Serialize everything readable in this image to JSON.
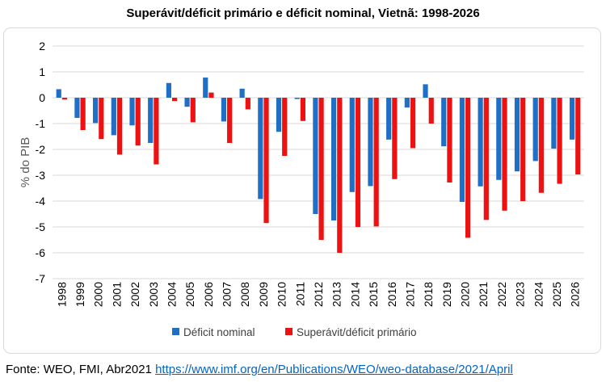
{
  "chart_data": {
    "type": "bar",
    "title": "Superávit/déficit primário e déficit nominal, Vietnã: 1998-2026",
    "xlabel": "",
    "ylabel": "% do PIB",
    "ylim": [
      -7,
      2
    ],
    "yticks": [
      2,
      1,
      0,
      -1,
      -2,
      -3,
      -4,
      -5,
      -6,
      -7
    ],
    "grid": true,
    "legend_position": "bottom",
    "categories": [
      "1998",
      "1999",
      "2000",
      "2001",
      "2002",
      "2003",
      "2004",
      "2005",
      "2006",
      "2007",
      "2008",
      "2009",
      "2010",
      "2011",
      "2012",
      "2013",
      "2014",
      "2015",
      "2016",
      "2017",
      "2018",
      "2019",
      "2020",
      "2021",
      "2022",
      "2023",
      "2024",
      "2025",
      "2026"
    ],
    "series": [
      {
        "name": "Déficit nominal",
        "color": "#1f6fc6",
        "values": [
          0.33,
          -0.78,
          -0.98,
          -1.45,
          -1.07,
          -1.75,
          0.57,
          -0.35,
          0.78,
          -0.92,
          0.35,
          -3.92,
          -1.32,
          -0.05,
          -4.5,
          -4.75,
          -3.65,
          -3.42,
          -1.62,
          -0.38,
          0.52,
          -1.88,
          -4.03,
          -3.43,
          -3.18,
          -2.85,
          -2.45,
          -1.97,
          -1.62
        ]
      },
      {
        "name": "Superávit/déficit primário",
        "color": "#ee1111",
        "values": [
          -0.07,
          -1.25,
          -1.6,
          -2.2,
          -1.85,
          -2.58,
          -0.13,
          -0.95,
          0.2,
          -1.75,
          -0.45,
          -4.85,
          -2.25,
          -0.9,
          -5.5,
          -6.0,
          -5.0,
          -4.98,
          -3.15,
          -1.95,
          -1.0,
          -3.28,
          -5.42,
          -4.73,
          -4.37,
          -4.0,
          -3.68,
          -3.33,
          -2.97
        ]
      }
    ]
  },
  "source": {
    "prefix": "Fonte: WEO, FMI, Abr2021 ",
    "link": "https://www.imf.org/en/Publications/WEO/weo-database/2021/April"
  }
}
